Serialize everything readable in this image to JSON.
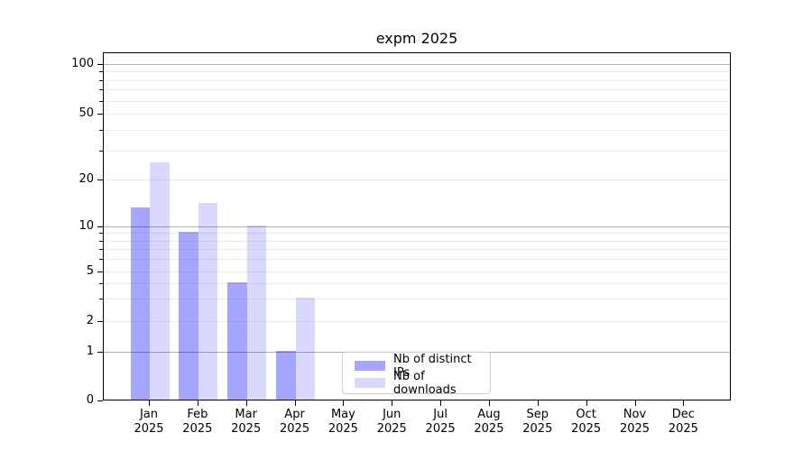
{
  "chart_data": {
    "type": "bar",
    "title": "expm 2025",
    "categories": [
      "Jan",
      "Feb",
      "Mar",
      "Apr",
      "May",
      "Jun",
      "Jul",
      "Aug",
      "Sep",
      "Oct",
      "Nov",
      "Dec"
    ],
    "x_year_label": "2025",
    "series": [
      {
        "name": "Nb of distinct IPs",
        "color_hex": "#a6a6ff",
        "fill": "rgba(0,0,255,0.35)",
        "values": [
          13,
          9,
          4,
          1,
          0,
          0,
          0,
          0,
          0,
          0,
          0,
          0
        ]
      },
      {
        "name": "Nb of downloads",
        "color_hex": "#d9d9ff",
        "fill": "rgba(0,0,255,0.15)",
        "values": [
          25,
          14,
          10,
          3,
          0,
          0,
          0,
          0,
          0,
          0,
          0,
          0
        ]
      }
    ],
    "xlabel": "",
    "ylabel": "",
    "y_axis_scale": "log-like (0, then logarithmic above 1)",
    "y_tick_labels": [
      0,
      1,
      2,
      5,
      10,
      20,
      50,
      100
    ],
    "y_major_gridlines": [
      1,
      10,
      100
    ],
    "y_minor_gridlines": [
      2,
      3,
      4,
      5,
      6,
      7,
      8,
      9,
      20,
      30,
      40,
      50,
      60,
      70,
      80,
      90
    ],
    "ylim": [
      0,
      120
    ],
    "grid": true,
    "legend_position": "lower center-left inside plot",
    "legend_entries": [
      "Nb of distinct IPs",
      "Nb of downloads"
    ]
  },
  "colors": {
    "bar_distinct_ips": "#a6a6ff",
    "bar_downloads": "#d9d9ff",
    "major_grid": "#b0b0b0",
    "minor_grid": "#ebebeb",
    "axis": "#000000",
    "legend_border": "#cccccc",
    "background": "#ffffff"
  }
}
